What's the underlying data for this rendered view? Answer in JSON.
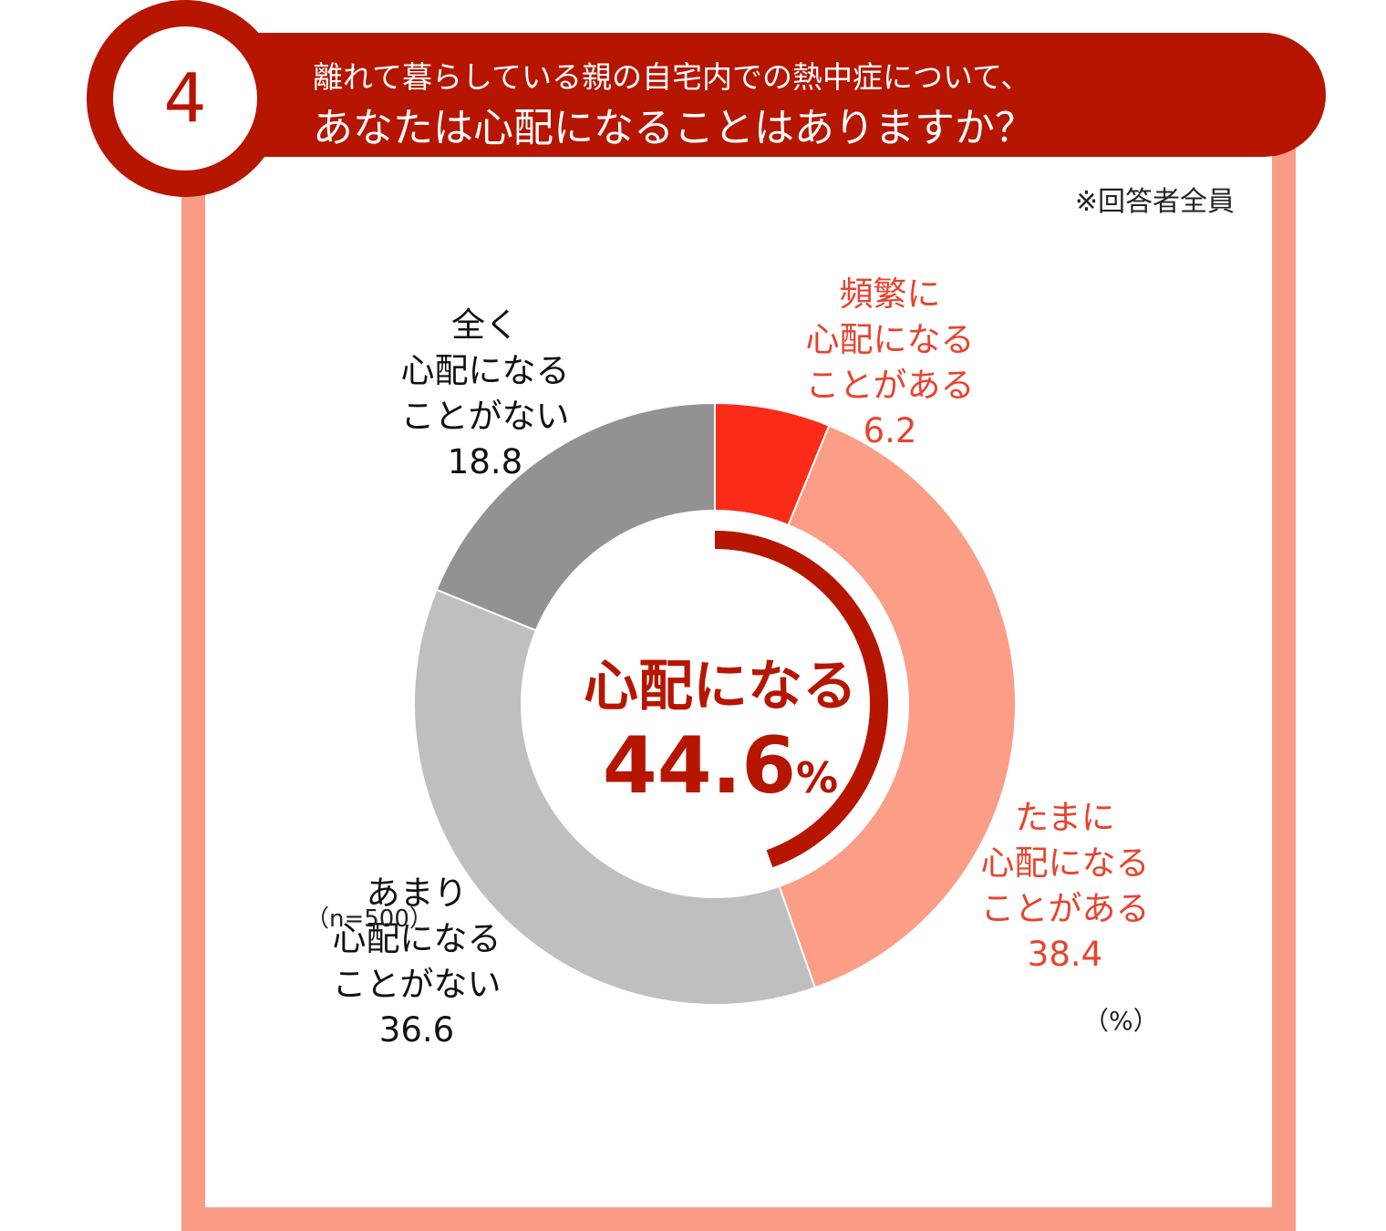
{
  "header": {
    "badge_number": "4",
    "question_line1": "離れて暮らしている親の自宅内での熱中症について、",
    "question_line2": "あなたは心配になることはありますか？"
  },
  "respondents_note": "※回答者全員",
  "center": {
    "label": "心配になる",
    "value": "44.6",
    "unit": "%"
  },
  "unit_note": "（%）",
  "sample_note": "（n=500）",
  "colors": {
    "accent": "#b61500",
    "frame": "#fa9b85"
  },
  "chart_data": {
    "type": "pie",
    "unit": "%",
    "slices": [
      {
        "label_lines": [
          "頻繁に",
          "心配になる",
          "ことがある"
        ],
        "value": 6.2,
        "value_text": "6.2",
        "color": "#fb2b1a",
        "label_color": "#e8432f"
      },
      {
        "label_lines": [
          "たまに",
          "心配になる",
          "ことがある"
        ],
        "value": 38.4,
        "value_text": "38.4",
        "color": "#fc9d86",
        "label_color": "#e8432f"
      },
      {
        "label_lines": [
          "あまり",
          "心配になる",
          "ことがない"
        ],
        "value": 36.6,
        "value_text": "36.6",
        "color": "#bfbfbf",
        "label_color": "#111111"
      },
      {
        "label_lines": [
          "全く",
          "心配になる",
          "ことがない"
        ],
        "value": 18.8,
        "value_text": "18.8",
        "color": "#929292",
        "label_color": "#111111"
      }
    ],
    "highlight": {
      "value": 44.6,
      "color": "#b61500"
    }
  }
}
